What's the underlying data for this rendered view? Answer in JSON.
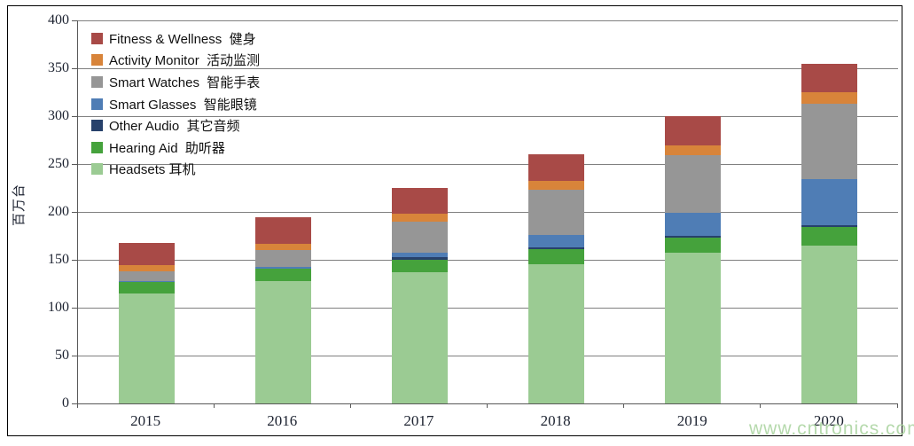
{
  "chart_data": {
    "type": "bar",
    "stacked": true,
    "ylabel": "百万台",
    "ylim": [
      0,
      400
    ],
    "ytick_step": 50,
    "grid": "horizontal gridlines every 50",
    "legend_position": "top-left",
    "categories": [
      "2015",
      "2016",
      "2017",
      "2018",
      "2019",
      "2020"
    ],
    "series": [
      {
        "name": "Headsets",
        "label": "Headsets 耳机",
        "color": "#9BCB93",
        "values": [
          115,
          128,
          137,
          145,
          157,
          165
        ]
      },
      {
        "name": "Hearing Aid",
        "label": "Hearing Aid  助听器",
        "color": "#45A23C",
        "values": [
          12,
          13,
          13,
          16,
          16,
          19
        ]
      },
      {
        "name": "Other Audio",
        "label": "Other Audio  其它音频",
        "color": "#27416B",
        "values": [
          0,
          0,
          3,
          2,
          2,
          2
        ]
      },
      {
        "name": "Smart Glasses",
        "label": "Smart Glasses  智能眼镜",
        "color": "#4F7DB5",
        "values": [
          1,
          2,
          4,
          13,
          24,
          48
        ]
      },
      {
        "name": "Smart Watches",
        "label": "Smart Watches  智能手表",
        "color": "#969696",
        "values": [
          10,
          17,
          33,
          47,
          60,
          79
        ]
      },
      {
        "name": "Activity Monitor",
        "label": "Activity Monitor  活动监测",
        "color": "#D8843A",
        "values": [
          6,
          7,
          8,
          9,
          10,
          12
        ]
      },
      {
        "name": "Fitness & Wellness",
        "label": "Fitness & Wellness  健身",
        "color": "#A84A47",
        "values": [
          24,
          27,
          27,
          28,
          31,
          30
        ]
      }
    ]
  },
  "watermark": {
    "text": "www.cntronics.com",
    "color": "#A9D39E"
  }
}
